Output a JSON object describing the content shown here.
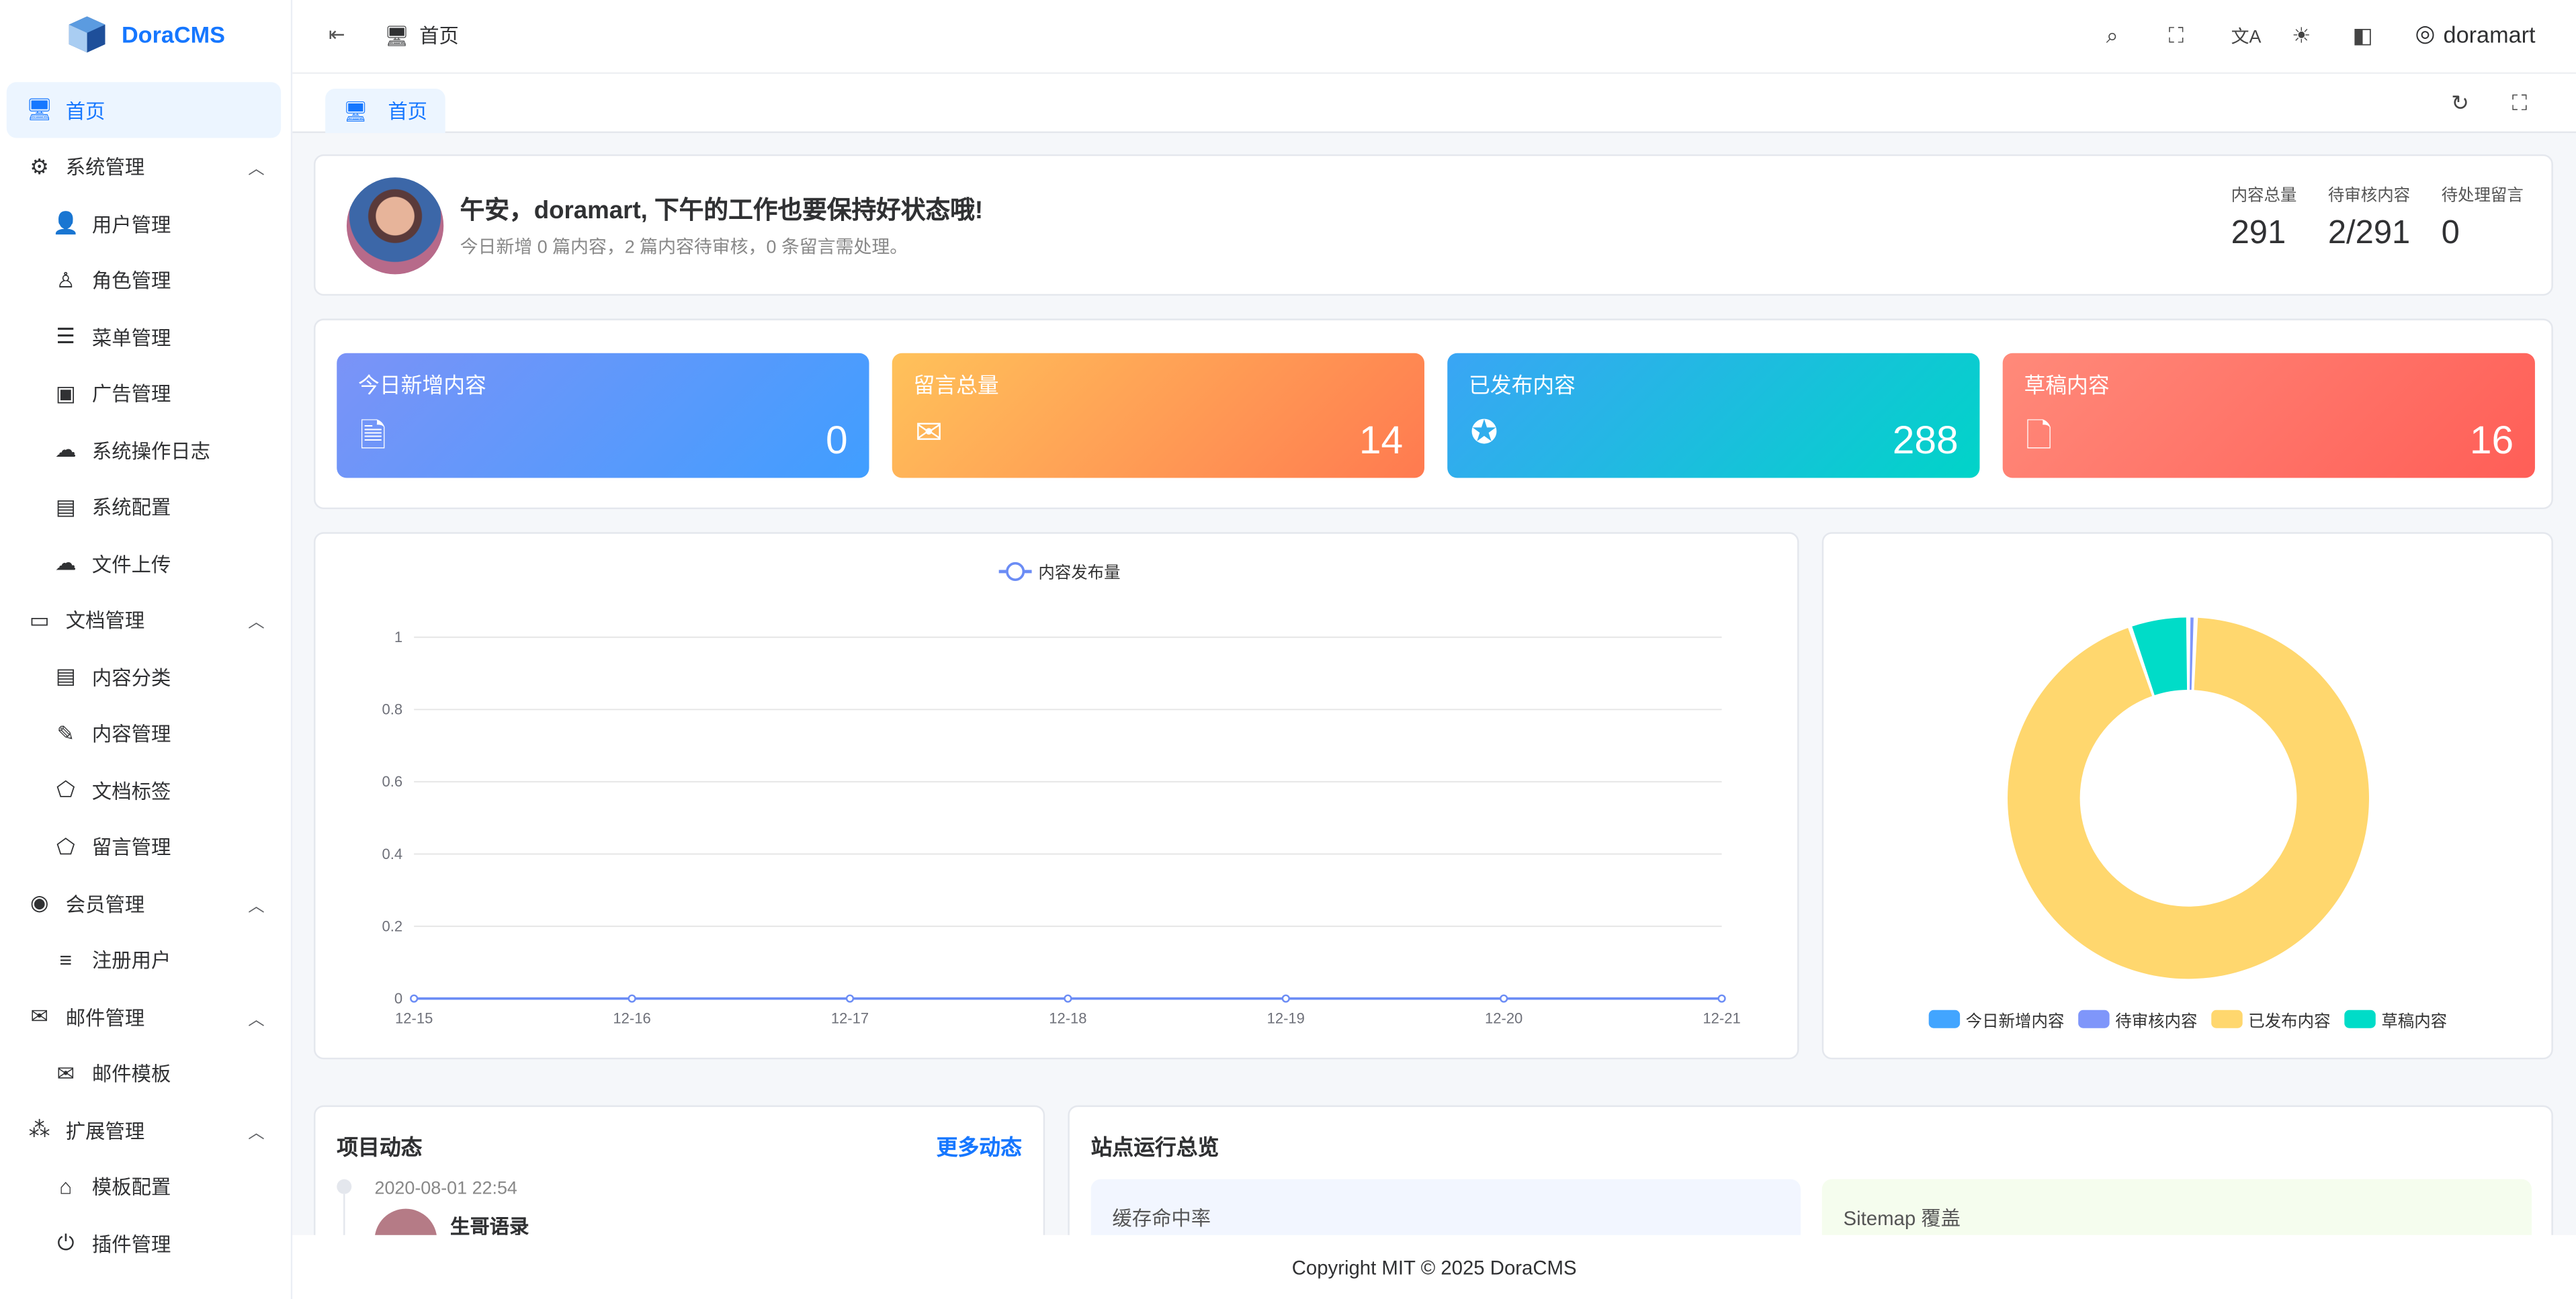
{
  "app": {
    "name": "DoraCMS",
    "user": "doramart",
    "footer": "Copyright MIT © 2025 DoraCMS"
  },
  "header": {
    "breadcrumb": "首页",
    "icons": [
      "search-icon",
      "fullscreen-icon",
      "translate-icon",
      "sun-icon",
      "theme-icon",
      "user-icon"
    ]
  },
  "tabs": [
    {
      "label": "首页",
      "active": true
    }
  ],
  "sidebar": {
    "items": [
      {
        "label": "首页",
        "level": 0,
        "icon": "monitor-icon",
        "active": true
      },
      {
        "label": "系统管理",
        "level": 0,
        "icon": "system-icon",
        "expanded": true
      },
      {
        "label": "用户管理",
        "level": 1,
        "icon": "user-gear-icon"
      },
      {
        "label": "角色管理",
        "level": 1,
        "icon": "role-icon"
      },
      {
        "label": "菜单管理",
        "level": 1,
        "icon": "menu-icon"
      },
      {
        "label": "广告管理",
        "level": 1,
        "icon": "ad-icon"
      },
      {
        "label": "系统操作日志",
        "level": 1,
        "icon": "log-icon"
      },
      {
        "label": "系统配置",
        "level": 1,
        "icon": "config-icon"
      },
      {
        "label": "文件上传",
        "level": 1,
        "icon": "upload-icon"
      },
      {
        "label": "文档管理",
        "level": 0,
        "icon": "document-icon",
        "expanded": true
      },
      {
        "label": "内容分类",
        "level": 1,
        "icon": "category-icon"
      },
      {
        "label": "内容管理",
        "level": 1,
        "icon": "content-icon"
      },
      {
        "label": "文档标签",
        "level": 1,
        "icon": "tag-icon"
      },
      {
        "label": "留言管理",
        "level": 1,
        "icon": "tag-icon"
      },
      {
        "label": "会员管理",
        "level": 0,
        "icon": "member-icon",
        "expanded": true
      },
      {
        "label": "注册用户",
        "level": 1,
        "icon": "user-list-icon"
      },
      {
        "label": "邮件管理",
        "level": 0,
        "icon": "mail-icon",
        "expanded": true
      },
      {
        "label": "邮件模板",
        "level": 1,
        "icon": "mail-template-icon"
      },
      {
        "label": "扩展管理",
        "level": 0,
        "icon": "extension-icon",
        "expanded": true
      },
      {
        "label": "模板配置",
        "level": 1,
        "icon": "template-icon"
      },
      {
        "label": "插件管理",
        "level": 1,
        "icon": "plugin-icon"
      }
    ]
  },
  "welcome": {
    "title": "午安，doramart, 下午的工作也要保持好状态哦!",
    "subtitle": "今日新增 0 篇内容，2 篇内容待审核，0 条留言需处理。",
    "stats": [
      {
        "label": "内容总量",
        "value": "291"
      },
      {
        "label": "待审核内容",
        "value": "2/291"
      },
      {
        "label": "待处理留言",
        "value": "0"
      }
    ]
  },
  "cards": [
    {
      "label": "今日新增内容",
      "value": "0",
      "icon": "file-icon",
      "colors": [
        "#7b93f7",
        "#409eff"
      ]
    },
    {
      "label": "留言总量",
      "value": "14",
      "icon": "mail-icon",
      "colors": [
        "#ffc25a",
        "#ff7a50"
      ]
    },
    {
      "label": "已发布内容",
      "value": "288",
      "icon": "verified-icon",
      "colors": [
        "#3aa5f5",
        "#00d4c8"
      ]
    },
    {
      "label": "草稿内容",
      "value": "16",
      "icon": "draft-icon",
      "colors": [
        "#ff8a7a",
        "#ff5e57"
      ]
    }
  ],
  "chart_data": [
    {
      "type": "line",
      "categories": [
        "12-15",
        "12-16",
        "12-17",
        "12-18",
        "12-19",
        "12-20",
        "12-21"
      ],
      "series": [
        {
          "name": "内容发布量",
          "values": [
            0,
            0,
            0,
            0,
            0,
            0,
            0
          ],
          "color": "#6b8cf5"
        }
      ],
      "ylim": [
        0,
        1
      ],
      "yticks": [
        "0",
        "0.2",
        "0.4",
        "0.6",
        "0.8",
        "1"
      ],
      "grid": true,
      "legend": "top"
    },
    {
      "type": "pie",
      "donut": true,
      "legend": "bottom",
      "slices": [
        {
          "name": "今日新增内容",
          "value": 0,
          "color": "#42a5ff"
        },
        {
          "name": "待审核内容",
          "value": 2,
          "color": "#7f96fa"
        },
        {
          "name": "已发布内容",
          "value": 288,
          "color": "#ffd76e"
        },
        {
          "name": "草稿内容",
          "value": 16,
          "color": "#00dcc8"
        }
      ]
    }
  ],
  "activity": {
    "title": "项目动态",
    "more": "更多动态",
    "items": [
      {
        "time": "2020-08-01 22:54",
        "author": "生哥语录"
      }
    ]
  },
  "overview": {
    "title": "站点运行总览",
    "panels": [
      {
        "label": "缓存命中率"
      },
      {
        "label": "Sitemap 覆盖"
      }
    ]
  }
}
